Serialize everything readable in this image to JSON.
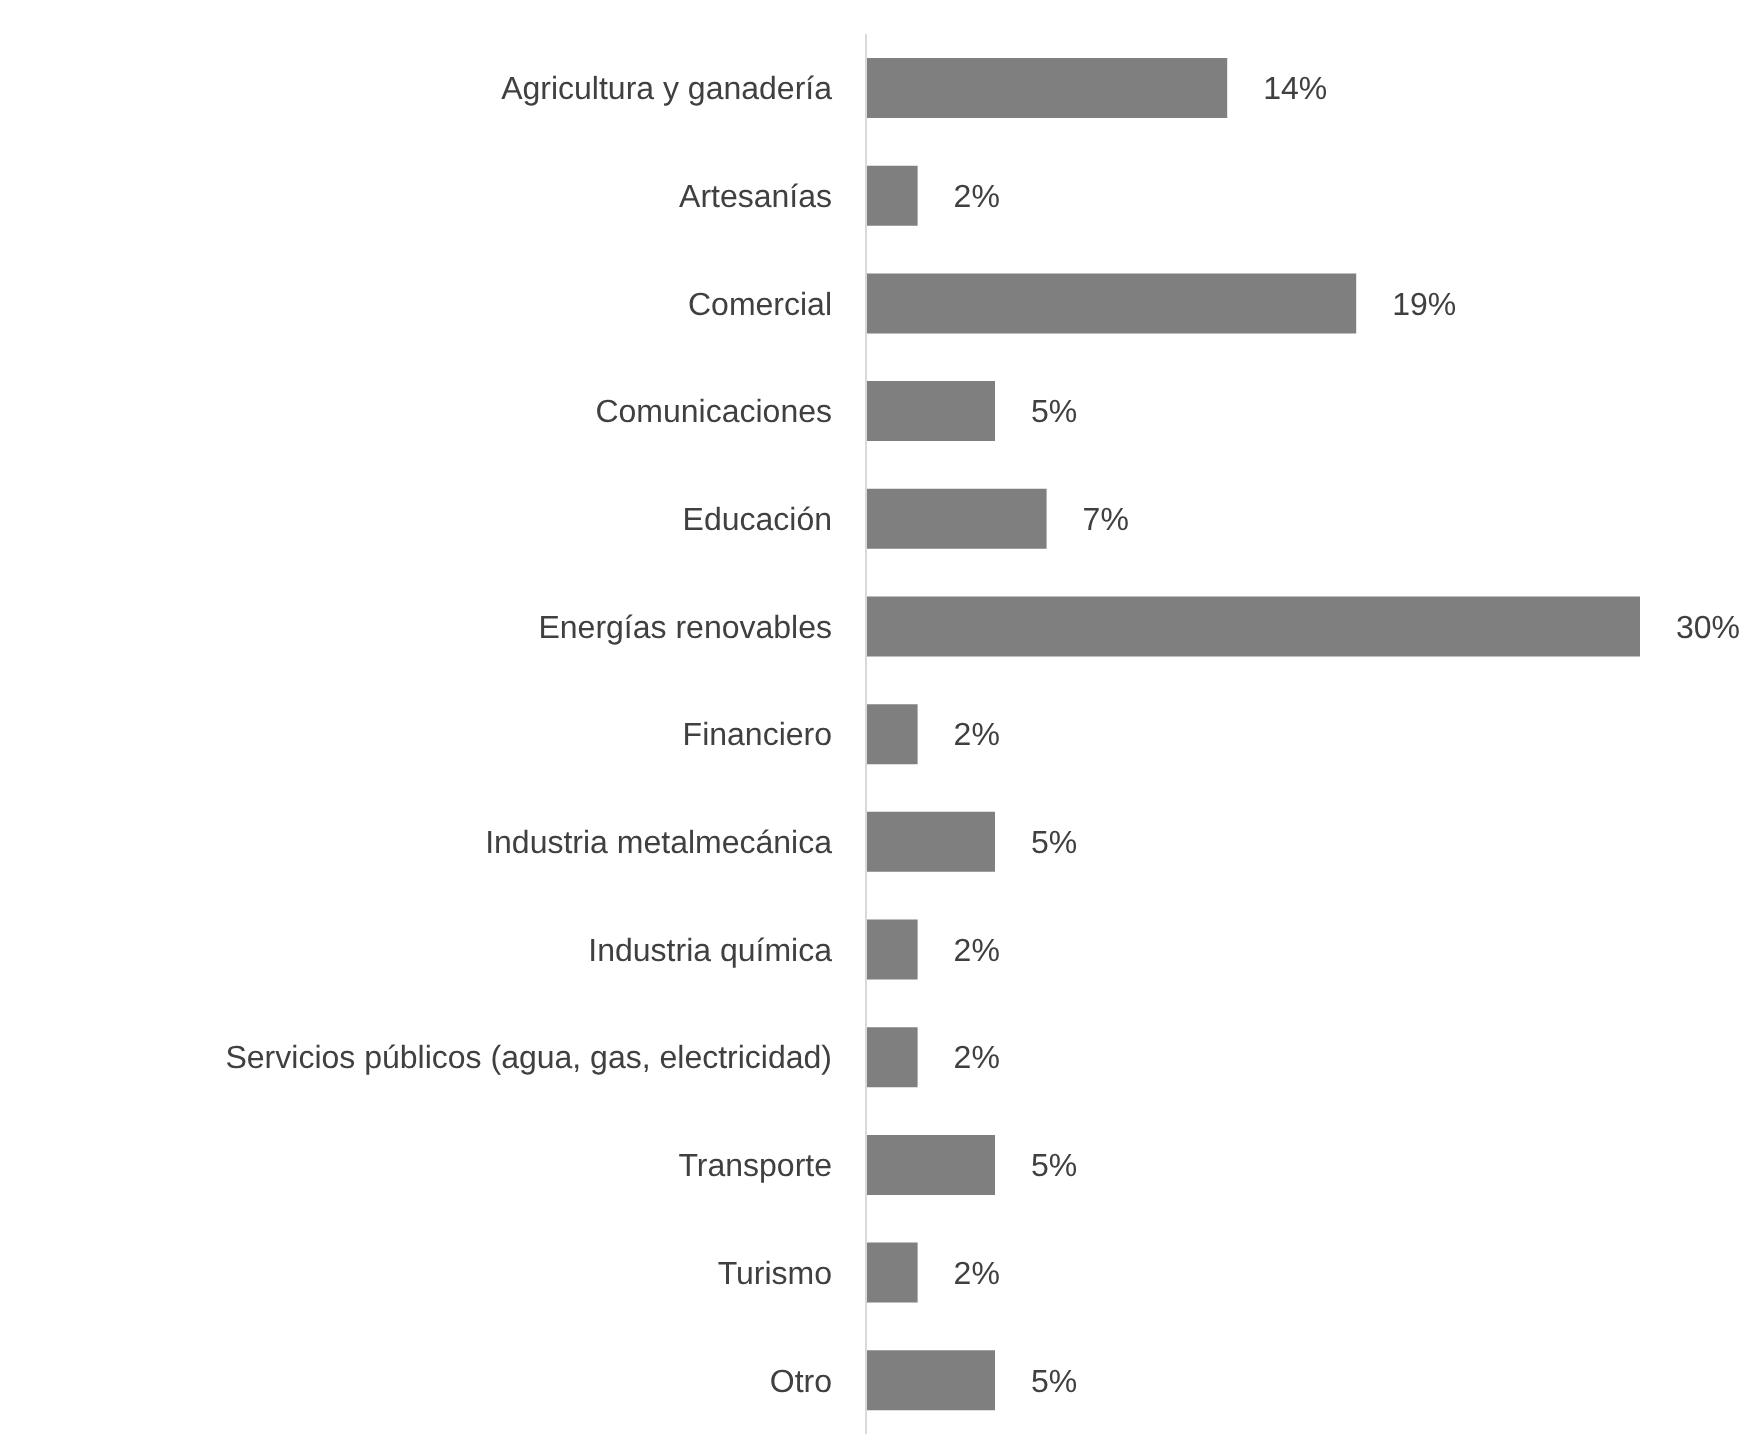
{
  "chart_data": {
    "type": "bar",
    "orientation": "horizontal",
    "categories": [
      "Agricultura y ganadería",
      "Artesanías",
      "Comercial",
      "Comunicaciones",
      "Educación",
      "Energías renovables",
      "Financiero",
      "Industria metalmecánica",
      "Industria química",
      "Servicios públicos (agua, gas, electricidad)",
      "Transporte",
      "Turismo",
      "Otro"
    ],
    "values": [
      14,
      2,
      19,
      5,
      7,
      30,
      2,
      5,
      2,
      2,
      5,
      2,
      5
    ],
    "value_labels": [
      "14%",
      "2%",
      "19%",
      "5%",
      "7%",
      "30%",
      "2%",
      "5%",
      "2%",
      "2%",
      "5%",
      "2%",
      "5%"
    ],
    "color": "#7f7f7f"
  }
}
